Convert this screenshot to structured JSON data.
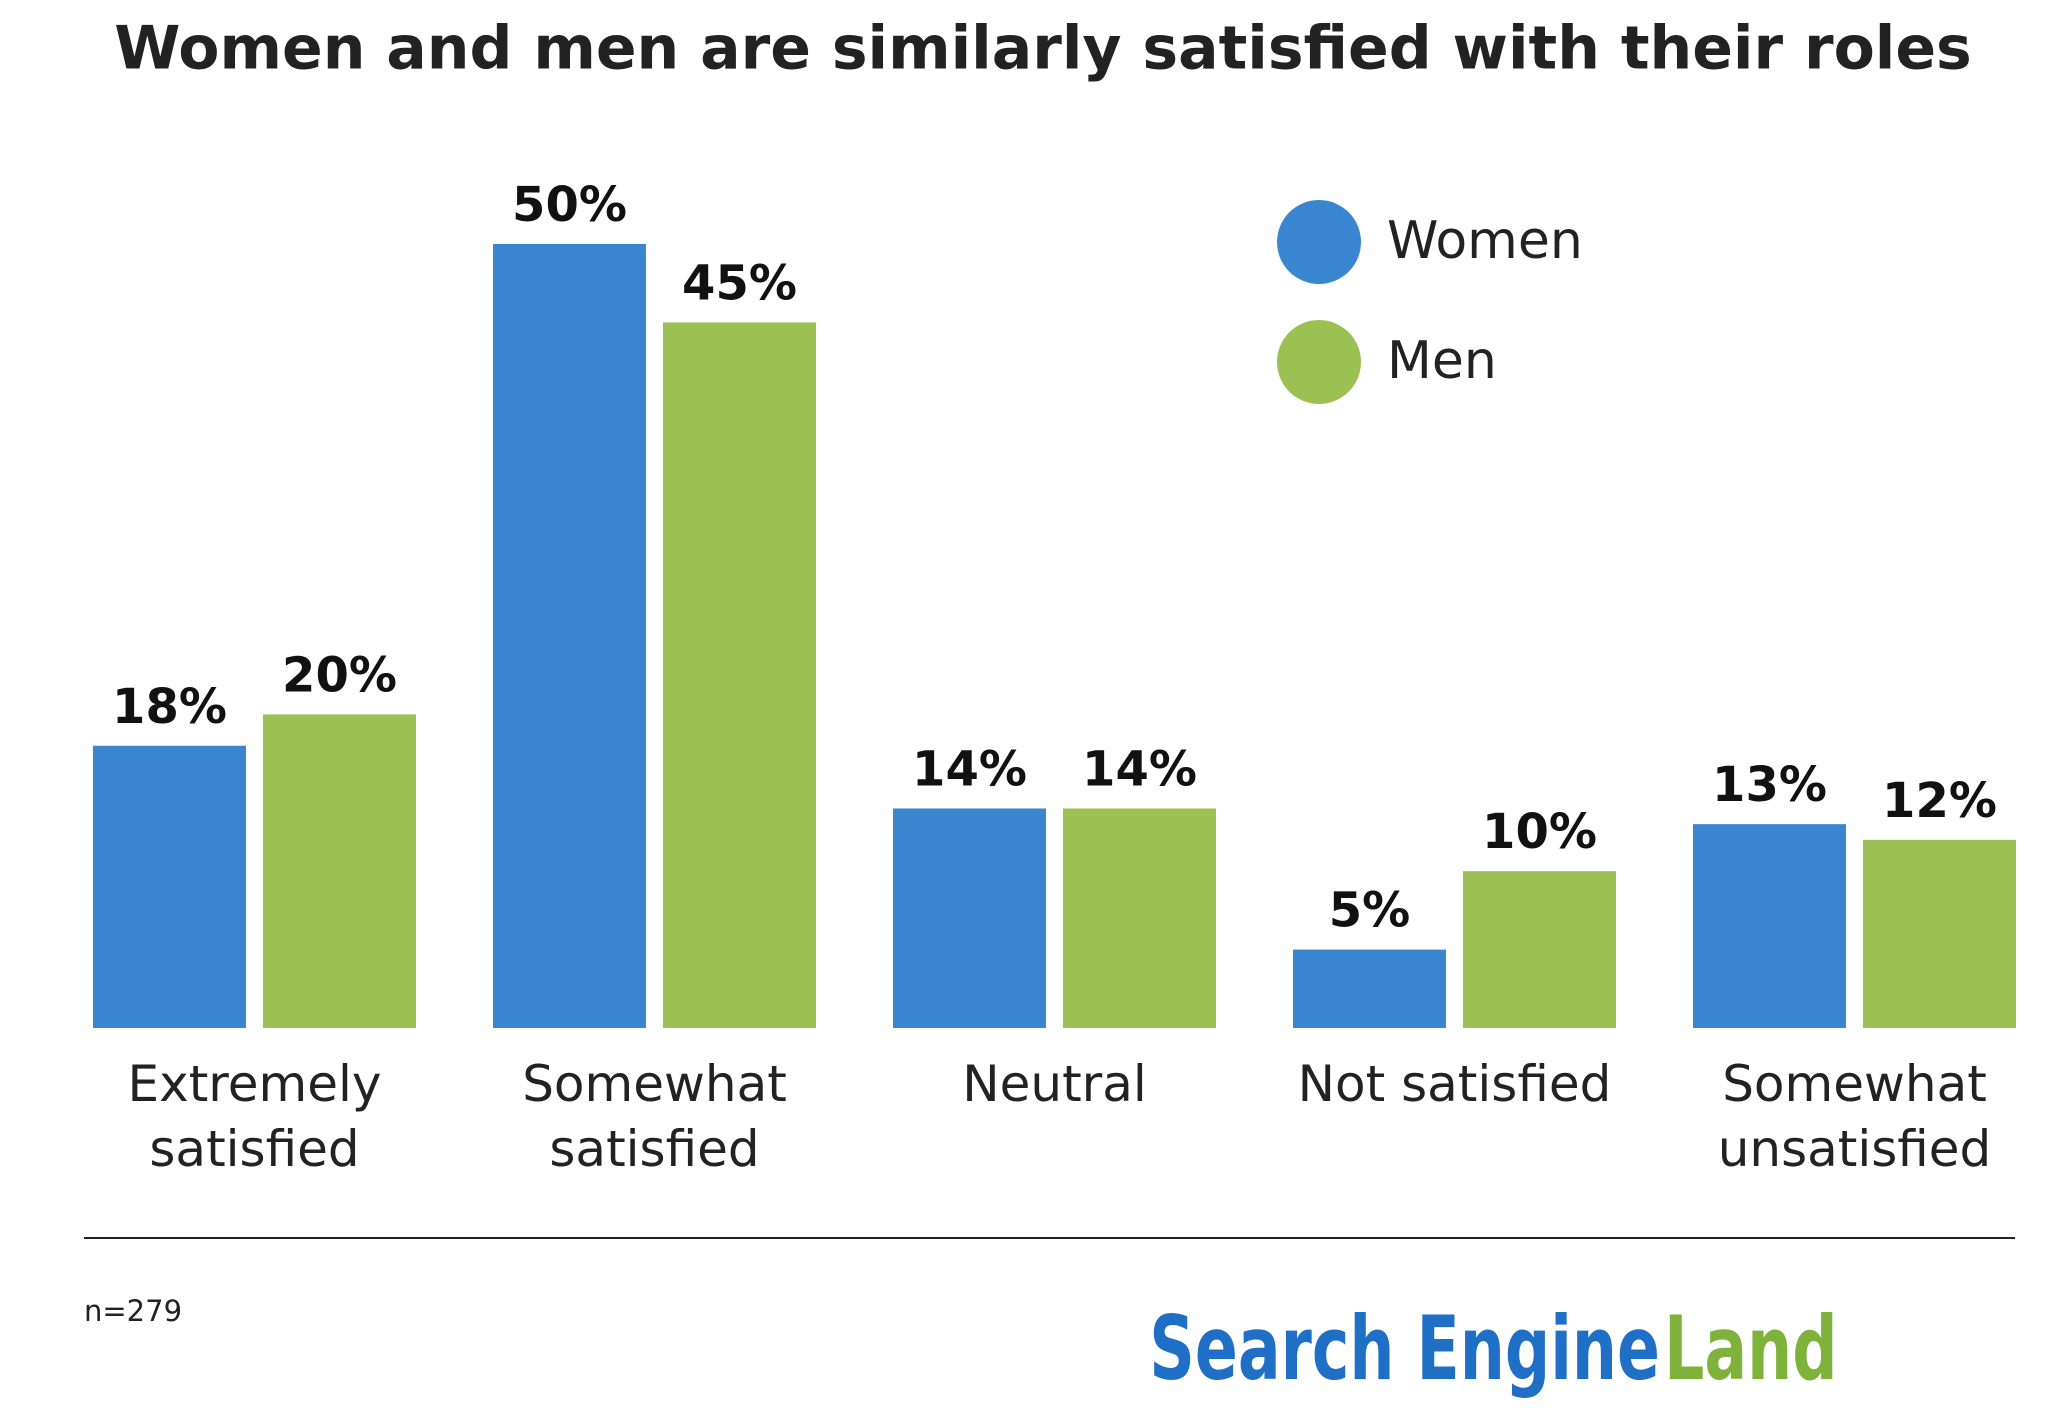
{
  "chart_data": {
    "type": "bar",
    "title": "Women and men are similarly satisfied with their roles",
    "categories": [
      "Extremely satisfied",
      "Somewhat satisfied",
      "Neutral",
      "Not satisfied",
      "Somewhat unsatisfied"
    ],
    "series": [
      {
        "name": "Women",
        "color": "#3b86d0",
        "values": [
          18,
          50,
          14,
          5,
          13
        ],
        "value_labels": [
          "18%",
          "50%",
          "14%",
          "5%",
          "13%"
        ]
      },
      {
        "name": "Men",
        "color": "#9ac152",
        "values": [
          20,
          45,
          14,
          10,
          12
        ],
        "value_labels": [
          "20%",
          "45%",
          "14%",
          "10%",
          "12%"
        ]
      }
    ],
    "note": "n=279",
    "logo": [
      "Search Engine",
      "Land"
    ]
  }
}
